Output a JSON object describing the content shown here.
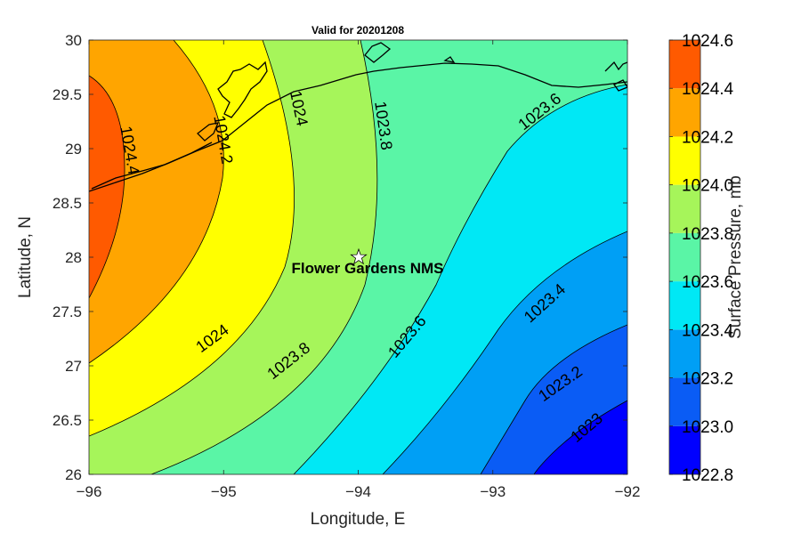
{
  "chart_data": {
    "type": "contour",
    "title": "Valid for 20201208",
    "xlabel": "Longitude, E",
    "ylabel": "Latitude, N",
    "xlim": [
      -96,
      -92
    ],
    "ylim": [
      26,
      30
    ],
    "xticks": [
      "−96",
      "−95",
      "−94",
      "−93",
      "−92"
    ],
    "yticks": [
      "26",
      "26.5",
      "27",
      "27.5",
      "28",
      "28.5",
      "29",
      "29.5",
      "30"
    ],
    "colorbar": {
      "label": "Surface Pressure, mb",
      "ticks": [
        "1022.8",
        "1023.0",
        "1023.2",
        "1023.4",
        "1023.6",
        "1023.8",
        "1024.0",
        "1024.2",
        "1024.4",
        "1024.6"
      ],
      "levels": [
        1022.8,
        1023.0,
        1023.2,
        1023.4,
        1023.6,
        1023.8,
        1024.0,
        1024.2,
        1024.4,
        1024.6
      ],
      "colors": [
        "#0000ff",
        "#0a5cf5",
        "#009ff5",
        "#00e8f5",
        "#5af5a6",
        "#a6f55a",
        "#ffff00",
        "#ffa500",
        "#ff5a00"
      ]
    },
    "contour_labels": [
      "1024.4",
      "1024.2",
      "1024",
      "1023.8",
      "1023.6",
      "1024",
      "1023.8",
      "1023.6",
      "1023.4",
      "1023.2",
      "1023"
    ],
    "site": {
      "name": "Flower Gardens NMS",
      "lon": -94.0,
      "lat": 28.0
    }
  }
}
